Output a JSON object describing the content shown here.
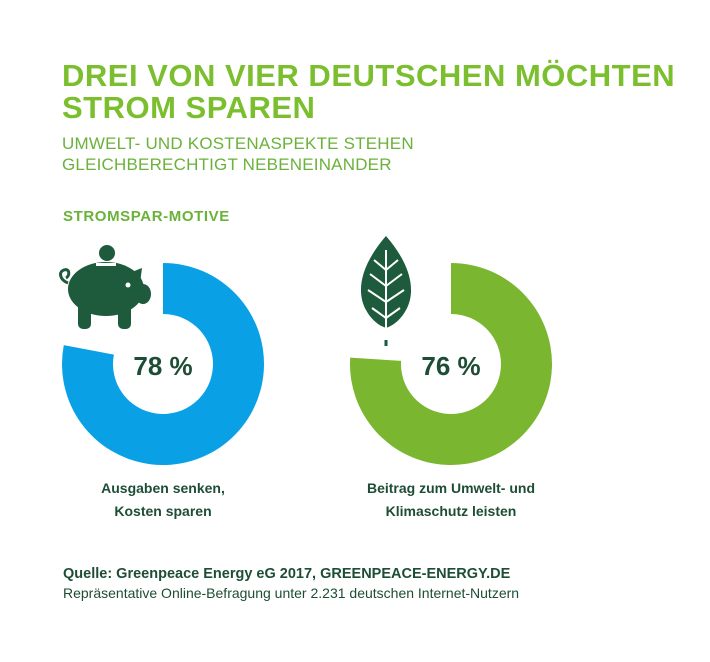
{
  "header": {
    "title_lines": [
      "DREI VON VIER DEUTSCHEN MÖCHTEN",
      "STROM SPAREN"
    ],
    "subtitle_lines": [
      "UMWELT- UND KOSTENASPEKTE STEHEN",
      "GLEICHBERECHTIGT NEBENEINANDER"
    ],
    "section": "STROMSPAR-MOTIVE"
  },
  "chart_data": {
    "type": "pie",
    "charts": [
      {
        "value": 78,
        "label": "78 %",
        "color": "#0aa0e6",
        "icon": "piggy-bank-icon",
        "caption_lines": [
          "Ausgaben senken,",
          "Kosten sparen"
        ]
      },
      {
        "value": 76,
        "label": "76 %",
        "color": "#7ab62f",
        "icon": "leaf-icon",
        "caption_lines": [
          "Beitrag zum Umwelt- und",
          "Klimaschutz leisten"
        ]
      }
    ]
  },
  "footer": {
    "source": "Quelle: Greenpeace Energy eG 2017, GREENPEACE-ENERGY.DE",
    "note": "Repräsentative Online-Befragung unter 2.231 deutschen Internet-Nutzern"
  },
  "colors": {
    "dark_green": "#1e4d36",
    "title_green": "#7bbf2f",
    "donut_track": "#ffffff"
  }
}
